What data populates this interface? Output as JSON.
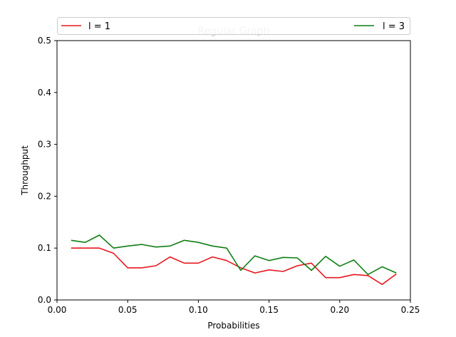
{
  "chart_data": {
    "type": "line",
    "title": "Regular Graph",
    "xlabel": "Probabilities",
    "ylabel": "Throughput",
    "xlim": [
      0.0,
      0.25
    ],
    "ylim": [
      0.0,
      0.5
    ],
    "xticks": [
      "0.00",
      "0.05",
      "0.10",
      "0.15",
      "0.20",
      "0.25"
    ],
    "yticks": [
      "0.0",
      "0.1",
      "0.2",
      "0.3",
      "0.4",
      "0.5"
    ],
    "grid": false,
    "legend": "top, spanning the plot width",
    "x": [
      0.01,
      0.02,
      0.03,
      0.04,
      0.05,
      0.06,
      0.07,
      0.08,
      0.09,
      0.1,
      0.11,
      0.12,
      0.13,
      0.14,
      0.15,
      0.16,
      0.17,
      0.18,
      0.19,
      0.2,
      0.21,
      0.22,
      0.23,
      0.24
    ],
    "series": [
      {
        "name": "l = 1",
        "color": "#e8171f",
        "values": [
          0.1,
          0.1,
          0.1,
          0.09,
          0.062,
          0.062,
          0.066,
          0.083,
          0.071,
          0.071,
          0.083,
          0.076,
          0.062,
          0.052,
          0.058,
          0.055,
          0.066,
          0.071,
          0.043,
          0.043,
          0.049,
          0.047,
          0.03,
          0.05
        ]
      },
      {
        "name": "l = 3",
        "color": "#0f7f12",
        "values": [
          0.115,
          0.111,
          0.125,
          0.1,
          0.104,
          0.107,
          0.102,
          0.104,
          0.115,
          0.111,
          0.104,
          0.1,
          0.057,
          0.085,
          0.076,
          0.082,
          0.081,
          0.057,
          0.084,
          0.065,
          0.077,
          0.049,
          0.064,
          0.052
        ]
      }
    ]
  }
}
